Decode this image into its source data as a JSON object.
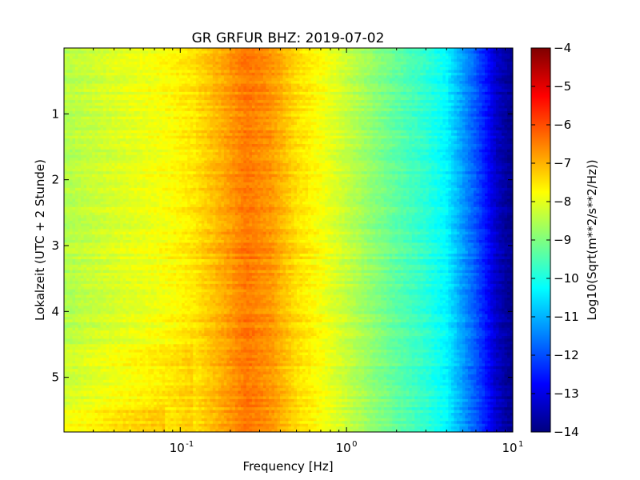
{
  "chart_data": {
    "type": "heatmap",
    "title": "GR GRFUR BHZ: 2019-07-02",
    "xlabel": "Frequency [Hz]",
    "ylabel": "Lokalzeit (UTC + 2 Stunde)",
    "x_scale": "log",
    "xlim": [
      0.02,
      10
    ],
    "ylim": [
      0,
      5.83
    ],
    "y_inverted": true,
    "x_ticks": [
      {
        "base": "10",
        "exp": "-1",
        "value": 0.1
      },
      {
        "base": "10",
        "exp": "0",
        "value": 1
      },
      {
        "base": "10",
        "exp": "1",
        "value": 10
      }
    ],
    "y_ticks": [
      1,
      2,
      3,
      4,
      5
    ],
    "colorbar": {
      "label": "Log10(Sqrt(m**2/s**2/Hz))",
      "range": [
        -14,
        -4
      ],
      "ticks": [
        -4,
        -5,
        -6,
        -7,
        -8,
        -9,
        -10,
        -11,
        -12,
        -13,
        -14
      ],
      "colormap": "jet"
    },
    "spectral_profile": {
      "description_values": "log10 amplitude vs frequency (typical)",
      "frequency_hz": [
        0.02,
        0.04,
        0.08,
        0.12,
        0.18,
        0.25,
        0.35,
        0.5,
        0.7,
        1.0,
        1.5,
        2.0,
        3.0,
        4.0,
        5.0,
        6.0,
        7.0,
        8.0,
        10.0
      ],
      "value": [
        -8.5,
        -8.1,
        -7.8,
        -7.5,
        -6.9,
        -6.4,
        -6.7,
        -7.4,
        -7.8,
        -8.3,
        -8.9,
        -9.3,
        -9.8,
        -10.3,
        -11.2,
        -11.9,
        -12.6,
        -13.3,
        -13.9
      ]
    }
  }
}
